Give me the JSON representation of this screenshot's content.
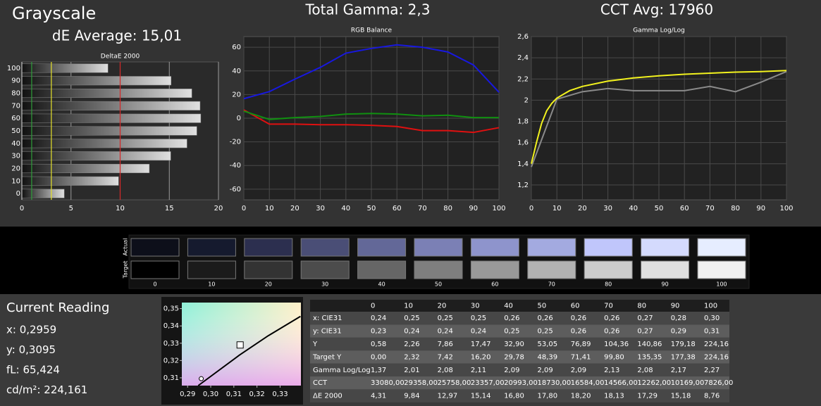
{
  "header": {
    "title": "Grayscale",
    "de_average": "dE Average: 15,01",
    "total_gamma": "Total Gamma: 2,3",
    "cct_avg": "CCT Avg: 17960"
  },
  "chart_data": [
    {
      "type": "hbar",
      "title": "DeltaE 2000",
      "categories": [
        "100",
        "90",
        "80",
        "70",
        "60",
        "50",
        "40",
        "30",
        "20",
        "10",
        "0"
      ],
      "values": [
        8.76,
        15.18,
        17.29,
        18.13,
        18.2,
        17.8,
        16.8,
        15.14,
        12.97,
        9.84,
        4.31
      ],
      "xlim": [
        0,
        20
      ],
      "xticks": [
        0,
        5,
        10,
        15,
        20
      ],
      "grid": true,
      "reference_lines": [
        {
          "value": 1,
          "color": "#2f9e3a"
        },
        {
          "value": 3,
          "color": "#e6e22a"
        },
        {
          "value": 10,
          "color": "#d62828"
        }
      ]
    },
    {
      "type": "line",
      "title": "RGB Balance",
      "x": [
        0,
        10,
        20,
        30,
        40,
        50,
        60,
        70,
        80,
        90,
        100
      ],
      "xlim": [
        0,
        100
      ],
      "xticks": [
        0,
        10,
        20,
        30,
        40,
        50,
        60,
        70,
        80,
        90,
        100
      ],
      "ylim": [
        -69,
        69
      ],
      "yticks": [
        60,
        40,
        20,
        0,
        -20,
        -40,
        -60
      ],
      "grid": true,
      "series": [
        {
          "color": "#e01010",
          "values": [
            7,
            -5,
            -5,
            -5.5,
            -5.5,
            -6,
            -7,
            -10.5,
            -10.5,
            -12,
            -8
          ]
        },
        {
          "color": "#109010",
          "values": [
            6,
            -1,
            0.5,
            1.5,
            3.5,
            4,
            3.5,
            2,
            2.5,
            0.5,
            0.5
          ]
        },
        {
          "color": "#1818e0",
          "values": [
            16.5,
            22.5,
            33,
            43,
            55,
            59,
            62,
            60,
            56,
            45,
            22
          ]
        }
      ]
    },
    {
      "type": "line",
      "title": "Gamma Log/Log",
      "x": [
        0,
        10,
        20,
        30,
        40,
        50,
        60,
        70,
        80,
        90,
        100
      ],
      "xlim": [
        0,
        100
      ],
      "xticks": [
        0,
        10,
        20,
        30,
        40,
        50,
        60,
        70,
        80,
        90,
        100
      ],
      "ylim": [
        1.06,
        2.6
      ],
      "yticks": [
        {
          "value": 1.2,
          "label": "1,2"
        },
        {
          "value": 1.4,
          "label": "1,4"
        },
        {
          "value": 1.6,
          "label": "1,6"
        },
        {
          "value": 1.8,
          "label": "1,8"
        },
        {
          "value": 2,
          "label": "2"
        },
        {
          "value": 2.2,
          "label": "2,2"
        },
        {
          "value": 2.4,
          "label": "2,4"
        },
        {
          "value": 2.6,
          "label": "2,6"
        }
      ],
      "grid": true,
      "series": [
        {
          "color": "#8a8a8a",
          "values": [
            1.37,
            2.01,
            2.08,
            2.11,
            2.09,
            2.09,
            2.09,
            2.13,
            2.08,
            2.17,
            2.27
          ]
        },
        {
          "color": "#f2f21e",
          "x": [
            0,
            2,
            4,
            6,
            8,
            10,
            15,
            20,
            30,
            40,
            50,
            60,
            70,
            80,
            90,
            100
          ],
          "values": [
            1.4,
            1.6,
            1.78,
            1.9,
            1.97,
            2.02,
            2.09,
            2.13,
            2.18,
            2.21,
            2.23,
            2.245,
            2.255,
            2.265,
            2.27,
            2.28
          ]
        }
      ]
    },
    {
      "type": "scatter",
      "xlim": [
        0.2875,
        0.339
      ],
      "ylim": [
        0.3055,
        0.3535
      ],
      "xticks": [
        {
          "value": 0.29,
          "label": "0,29"
        },
        {
          "value": 0.3,
          "label": "0,30"
        },
        {
          "value": 0.31,
          "label": "0,31"
        },
        {
          "value": 0.32,
          "label": "0,32"
        },
        {
          "value": 0.33,
          "label": "0,33"
        }
      ],
      "yticks": [
        {
          "value": 0.31,
          "label": "0,31"
        },
        {
          "value": 0.32,
          "label": "0,32"
        },
        {
          "value": 0.33,
          "label": "0,33"
        },
        {
          "value": 0.34,
          "label": "0,34"
        },
        {
          "value": 0.35,
          "label": "0,35"
        }
      ],
      "series": [
        {
          "mode": "line",
          "color": "#000000",
          "x": [
            0.2946,
            0.3124,
            0.3246,
            0.3388
          ],
          "values": [
            0.3055,
            0.3231,
            0.3341,
            0.3455
          ]
        },
        {
          "mode": "square",
          "color": "#000000",
          "x": [
            0.3127
          ],
          "values": [
            0.329
          ]
        },
        {
          "mode": "circle",
          "color": "#000000",
          "x": [
            0.2959
          ],
          "values": [
            0.3095
          ]
        }
      ]
    }
  ],
  "swatches": {
    "row_labels": [
      "Actual",
      "Target"
    ],
    "labels": [
      "0",
      "10",
      "20",
      "30",
      "40",
      "50",
      "60",
      "70",
      "80",
      "90",
      "100"
    ],
    "actual": [
      "#0d0f1a",
      "#151a2e",
      "#2c2f4f",
      "#4a4e76",
      "#636898",
      "#7b80b5",
      "#8e94cc",
      "#a3aae0",
      "#c0c6fb",
      "#d4dafd",
      "#e6edff"
    ],
    "target": [
      "#000000",
      "#1b1b1b",
      "#333333",
      "#4c4c4c",
      "#666666",
      "#7f7f7f",
      "#999999",
      "#b2b2b2",
      "#cccccc",
      "#e0e0e0",
      "#f0f0f0"
    ]
  },
  "current_reading": {
    "title": "Current Reading",
    "lines": [
      "x: 0,2959",
      "y: 0,3095",
      "fL: 65,424",
      "cd/m²: 224,161"
    ]
  },
  "table": {
    "columns": [
      "0",
      "10",
      "20",
      "30",
      "40",
      "50",
      "60",
      "70",
      "80",
      "90",
      "100"
    ],
    "rows": [
      [
        "x: CIE31",
        "0,24",
        "0,25",
        "0,25",
        "0,25",
        "0,26",
        "0,26",
        "0,26",
        "0,26",
        "0,27",
        "0,28",
        "0,30"
      ],
      [
        "y: CIE31",
        "0,23",
        "0,24",
        "0,24",
        "0,24",
        "0,25",
        "0,25",
        "0,26",
        "0,26",
        "0,27",
        "0,29",
        "0,31"
      ],
      [
        "Y",
        "0,58",
        "2,26",
        "7,86",
        "17,47",
        "32,90",
        "53,05",
        "76,89",
        "104,36",
        "140,86",
        "179,18",
        "224,16"
      ],
      [
        "Target Y",
        "0,00",
        "2,32",
        "7,42",
        "16,20",
        "29,78",
        "48,39",
        "71,41",
        "99,80",
        "135,35",
        "177,38",
        "224,16"
      ],
      [
        "Gamma Log/Log",
        "1,37",
        "2,01",
        "2,08",
        "2,11",
        "2,09",
        "2,09",
        "2,09",
        "2,13",
        "2,08",
        "2,17",
        "2,27"
      ],
      [
        "CCT",
        "33080,00",
        "29358,00",
        "25758,00",
        "23357,00",
        "20993,00",
        "18730,00",
        "16584,00",
        "14566,00",
        "12262,00",
        "10169,00",
        "7826,00"
      ],
      [
        "ΔE 2000",
        "4,31",
        "9,84",
        "12,97",
        "15,14",
        "16,80",
        "17,80",
        "18,20",
        "18,13",
        "17,29",
        "15,18",
        "8,76"
      ]
    ]
  }
}
